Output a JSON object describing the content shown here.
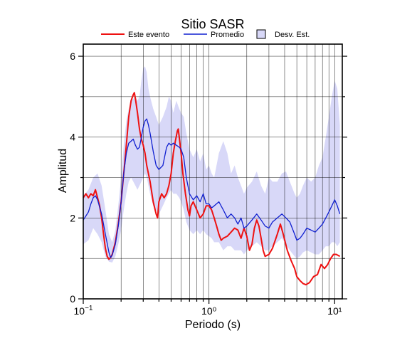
{
  "chart_data": {
    "type": "line",
    "title": "Sitio SASR",
    "xlabel": "Periodo (s)",
    "ylabel": "Amplitud",
    "xscale": "log",
    "xlim": [
      0.1,
      11.5
    ],
    "ylim": [
      0,
      6.3
    ],
    "xticks": [
      {
        "value": 0.1,
        "base": "10",
        "exp": "−1"
      },
      {
        "value": 1,
        "text": "10⁰"
      },
      {
        "value": 10,
        "text": "10¹"
      }
    ],
    "yticks": [
      0,
      2,
      4,
      6
    ],
    "grid": true,
    "legend": "top",
    "legend_entries": {
      "event": "Este evento",
      "mean": "Promedio",
      "std": "Desv. Est."
    },
    "colors": {
      "event": "#ee1111",
      "mean": "#1020d0",
      "std": "#d8d8f8",
      "std_edge": "#000000",
      "grid": "#000000"
    },
    "series": [
      {
        "key": "event",
        "points": [
          [
            0.1,
            2.5
          ],
          [
            0.105,
            2.6
          ],
          [
            0.11,
            2.5
          ],
          [
            0.115,
            2.6
          ],
          [
            0.12,
            2.55
          ],
          [
            0.125,
            2.7
          ],
          [
            0.13,
            2.5
          ],
          [
            0.135,
            2.3
          ],
          [
            0.14,
            2.0
          ],
          [
            0.145,
            1.6
          ],
          [
            0.15,
            1.25
          ],
          [
            0.155,
            1.05
          ],
          [
            0.16,
            0.98
          ],
          [
            0.165,
            1.02
          ],
          [
            0.17,
            1.1
          ],
          [
            0.18,
            1.4
          ],
          [
            0.19,
            1.85
          ],
          [
            0.2,
            2.4
          ],
          [
            0.21,
            3.1
          ],
          [
            0.22,
            3.8
          ],
          [
            0.23,
            4.5
          ],
          [
            0.24,
            4.9
          ],
          [
            0.25,
            5.05
          ],
          [
            0.255,
            5.1
          ],
          [
            0.26,
            4.95
          ],
          [
            0.27,
            4.6
          ],
          [
            0.28,
            4.2
          ],
          [
            0.29,
            3.95
          ],
          [
            0.3,
            3.8
          ],
          [
            0.31,
            3.6
          ],
          [
            0.32,
            3.3
          ],
          [
            0.34,
            2.9
          ],
          [
            0.36,
            2.4
          ],
          [
            0.38,
            2.1
          ],
          [
            0.39,
            2.0
          ],
          [
            0.4,
            2.4
          ],
          [
            0.42,
            2.6
          ],
          [
            0.44,
            2.5
          ],
          [
            0.46,
            2.6
          ],
          [
            0.48,
            2.8
          ],
          [
            0.5,
            3.1
          ],
          [
            0.52,
            3.6
          ],
          [
            0.54,
            3.9
          ],
          [
            0.56,
            4.15
          ],
          [
            0.57,
            4.2
          ],
          [
            0.58,
            4.0
          ],
          [
            0.6,
            3.6
          ],
          [
            0.62,
            3.1
          ],
          [
            0.65,
            2.6
          ],
          [
            0.68,
            2.2
          ],
          [
            0.7,
            2.05
          ],
          [
            0.72,
            2.3
          ],
          [
            0.75,
            2.4
          ],
          [
            0.8,
            2.2
          ],
          [
            0.85,
            2.0
          ],
          [
            0.9,
            2.1
          ],
          [
            0.95,
            2.3
          ],
          [
            1.0,
            2.3
          ],
          [
            1.05,
            2.2
          ],
          [
            1.1,
            2.0
          ],
          [
            1.15,
            1.8
          ],
          [
            1.2,
            1.6
          ],
          [
            1.25,
            1.45
          ],
          [
            1.3,
            1.5
          ],
          [
            1.4,
            1.55
          ],
          [
            1.5,
            1.65
          ],
          [
            1.6,
            1.75
          ],
          [
            1.7,
            1.7
          ],
          [
            1.8,
            1.5
          ],
          [
            1.9,
            1.75
          ],
          [
            2.0,
            1.55
          ],
          [
            2.1,
            1.2
          ],
          [
            2.2,
            1.35
          ],
          [
            2.3,
            1.75
          ],
          [
            2.4,
            1.95
          ],
          [
            2.5,
            1.8
          ],
          [
            2.6,
            1.5
          ],
          [
            2.7,
            1.2
          ],
          [
            2.8,
            1.05
          ],
          [
            3.0,
            1.1
          ],
          [
            3.2,
            1.25
          ],
          [
            3.5,
            1.6
          ],
          [
            3.7,
            1.85
          ],
          [
            3.9,
            1.6
          ],
          [
            4.2,
            1.2
          ],
          [
            4.5,
            0.95
          ],
          [
            4.8,
            0.75
          ],
          [
            5.0,
            0.55
          ],
          [
            5.3,
            0.45
          ],
          [
            5.6,
            0.38
          ],
          [
            5.9,
            0.35
          ],
          [
            6.3,
            0.4
          ],
          [
            6.8,
            0.55
          ],
          [
            7.3,
            0.6
          ],
          [
            7.8,
            0.85
          ],
          [
            8.3,
            0.75
          ],
          [
            8.8,
            0.85
          ],
          [
            9.3,
            1.0
          ],
          [
            9.8,
            1.1
          ],
          [
            10.3,
            1.1
          ],
          [
            11.0,
            1.05
          ]
        ]
      },
      {
        "key": "mean",
        "points": [
          [
            0.1,
            1.95
          ],
          [
            0.105,
            2.05
          ],
          [
            0.11,
            2.15
          ],
          [
            0.115,
            2.35
          ],
          [
            0.12,
            2.5
          ],
          [
            0.125,
            2.55
          ],
          [
            0.13,
            2.45
          ],
          [
            0.14,
            2.1
          ],
          [
            0.15,
            1.6
          ],
          [
            0.16,
            1.15
          ],
          [
            0.165,
            1.02
          ],
          [
            0.17,
            1.08
          ],
          [
            0.18,
            1.35
          ],
          [
            0.19,
            1.8
          ],
          [
            0.2,
            2.4
          ],
          [
            0.21,
            3.1
          ],
          [
            0.22,
            3.6
          ],
          [
            0.23,
            3.85
          ],
          [
            0.24,
            3.9
          ],
          [
            0.25,
            3.95
          ],
          [
            0.26,
            3.8
          ],
          [
            0.27,
            3.7
          ],
          [
            0.28,
            3.75
          ],
          [
            0.29,
            4.0
          ],
          [
            0.3,
            4.25
          ],
          [
            0.31,
            4.4
          ],
          [
            0.32,
            4.45
          ],
          [
            0.33,
            4.3
          ],
          [
            0.34,
            4.1
          ],
          [
            0.36,
            3.65
          ],
          [
            0.38,
            3.3
          ],
          [
            0.4,
            3.2
          ],
          [
            0.43,
            3.3
          ],
          [
            0.46,
            3.75
          ],
          [
            0.48,
            3.85
          ],
          [
            0.5,
            3.8
          ],
          [
            0.52,
            3.85
          ],
          [
            0.55,
            3.8
          ],
          [
            0.58,
            3.75
          ],
          [
            0.6,
            3.7
          ],
          [
            0.63,
            3.5
          ],
          [
            0.66,
            3.0
          ],
          [
            0.7,
            2.6
          ],
          [
            0.75,
            2.45
          ],
          [
            0.8,
            2.55
          ],
          [
            0.85,
            2.4
          ],
          [
            0.9,
            2.6
          ],
          [
            0.95,
            2.35
          ],
          [
            1.0,
            2.35
          ],
          [
            1.05,
            2.25
          ],
          [
            1.1,
            2.3
          ],
          [
            1.2,
            2.4
          ],
          [
            1.3,
            2.2
          ],
          [
            1.4,
            2.0
          ],
          [
            1.5,
            2.1
          ],
          [
            1.6,
            2.0
          ],
          [
            1.7,
            1.85
          ],
          [
            1.8,
            2.0
          ],
          [
            1.9,
            1.75
          ],
          [
            2.0,
            1.8
          ],
          [
            2.2,
            1.95
          ],
          [
            2.4,
            2.1
          ],
          [
            2.6,
            1.95
          ],
          [
            2.8,
            1.8
          ],
          [
            3.0,
            1.75
          ],
          [
            3.2,
            1.9
          ],
          [
            3.5,
            2.0
          ],
          [
            3.8,
            2.1
          ],
          [
            4.1,
            2.0
          ],
          [
            4.4,
            1.9
          ],
          [
            4.8,
            1.6
          ],
          [
            5.0,
            1.45
          ],
          [
            5.3,
            1.5
          ],
          [
            5.6,
            1.6
          ],
          [
            6.0,
            1.75
          ],
          [
            6.5,
            1.7
          ],
          [
            7.0,
            1.65
          ],
          [
            7.5,
            1.75
          ],
          [
            8.0,
            1.85
          ],
          [
            8.5,
            2.0
          ],
          [
            9.0,
            2.15
          ],
          [
            9.5,
            2.3
          ],
          [
            10.0,
            2.45
          ],
          [
            10.5,
            2.3
          ],
          [
            11.0,
            2.1
          ]
        ]
      }
    ],
    "band": [
      [
        0.1,
        1.35,
        2.55
      ],
      [
        0.11,
        1.45,
        2.7
      ],
      [
        0.12,
        1.75,
        3.0
      ],
      [
        0.13,
        1.6,
        3.1
      ],
      [
        0.14,
        1.4,
        2.8
      ],
      [
        0.15,
        1.05,
        2.2
      ],
      [
        0.16,
        0.92,
        1.6
      ],
      [
        0.17,
        0.9,
        1.4
      ],
      [
        0.18,
        1.05,
        1.7
      ],
      [
        0.19,
        1.35,
        2.3
      ],
      [
        0.2,
        1.7,
        3.0
      ],
      [
        0.21,
        2.2,
        3.8
      ],
      [
        0.22,
        2.6,
        4.4
      ],
      [
        0.23,
        2.9,
        4.7
      ],
      [
        0.24,
        3.0,
        4.9
      ],
      [
        0.25,
        2.9,
        4.95
      ],
      [
        0.26,
        2.8,
        5.0
      ],
      [
        0.27,
        2.7,
        4.9
      ],
      [
        0.28,
        2.8,
        5.0
      ],
      [
        0.29,
        2.9,
        5.4
      ],
      [
        0.3,
        3.0,
        5.7
      ],
      [
        0.31,
        3.1,
        5.75
      ],
      [
        0.32,
        3.0,
        5.6
      ],
      [
        0.33,
        2.8,
        5.2
      ],
      [
        0.34,
        2.6,
        5.0
      ],
      [
        0.36,
        2.3,
        4.7
      ],
      [
        0.38,
        2.2,
        4.5
      ],
      [
        0.4,
        2.1,
        4.3
      ],
      [
        0.43,
        2.3,
        4.5
      ],
      [
        0.46,
        2.5,
        4.75
      ],
      [
        0.48,
        2.6,
        5.0
      ],
      [
        0.5,
        2.7,
        4.9
      ],
      [
        0.52,
        2.6,
        4.6
      ],
      [
        0.55,
        2.6,
        4.9
      ],
      [
        0.58,
        2.5,
        4.7
      ],
      [
        0.6,
        2.4,
        4.6
      ],
      [
        0.63,
        2.2,
        4.5
      ],
      [
        0.66,
        1.9,
        4.1
      ],
      [
        0.7,
        1.7,
        3.7
      ],
      [
        0.75,
        1.6,
        3.5
      ],
      [
        0.8,
        1.7,
        3.7
      ],
      [
        0.85,
        1.6,
        3.4
      ],
      [
        0.9,
        1.7,
        3.6
      ],
      [
        0.95,
        1.6,
        3.2
      ],
      [
        1.0,
        1.55,
        3.3
      ],
      [
        1.05,
        1.5,
        3.1
      ],
      [
        1.1,
        1.4,
        3.0
      ],
      [
        1.2,
        1.4,
        3.6
      ],
      [
        1.3,
        1.2,
        3.9
      ],
      [
        1.4,
        1.3,
        3.6
      ],
      [
        1.5,
        1.3,
        3.1
      ],
      [
        1.6,
        1.2,
        3.3
      ],
      [
        1.7,
        1.2,
        3.0
      ],
      [
        1.8,
        1.2,
        2.8
      ],
      [
        1.9,
        1.1,
        2.6
      ],
      [
        2.0,
        1.2,
        2.75
      ],
      [
        2.2,
        1.3,
        2.9
      ],
      [
        2.4,
        1.4,
        3.15
      ],
      [
        2.6,
        1.3,
        2.8
      ],
      [
        2.8,
        1.2,
        2.6
      ],
      [
        3.0,
        1.2,
        3.0
      ],
      [
        3.2,
        1.3,
        2.9
      ],
      [
        3.5,
        1.4,
        2.9
      ],
      [
        3.8,
        1.5,
        3.1
      ],
      [
        4.1,
        1.35,
        3.15
      ],
      [
        4.4,
        1.2,
        2.9
      ],
      [
        4.8,
        1.05,
        2.6
      ],
      [
        5.0,
        1.0,
        2.5
      ],
      [
        5.3,
        1.05,
        2.6
      ],
      [
        5.6,
        1.15,
        2.8
      ],
      [
        6.0,
        1.2,
        3.0
      ],
      [
        6.5,
        1.15,
        2.9
      ],
      [
        7.0,
        1.1,
        3.0
      ],
      [
        7.5,
        1.1,
        3.3
      ],
      [
        8.0,
        1.2,
        3.5
      ],
      [
        8.5,
        1.3,
        4.0
      ],
      [
        9.0,
        1.3,
        4.5
      ],
      [
        9.5,
        1.4,
        5.0
      ],
      [
        10.0,
        1.4,
        5.4
      ],
      [
        10.5,
        1.3,
        5.2
      ],
      [
        11.0,
        1.4,
        4.3
      ]
    ]
  }
}
